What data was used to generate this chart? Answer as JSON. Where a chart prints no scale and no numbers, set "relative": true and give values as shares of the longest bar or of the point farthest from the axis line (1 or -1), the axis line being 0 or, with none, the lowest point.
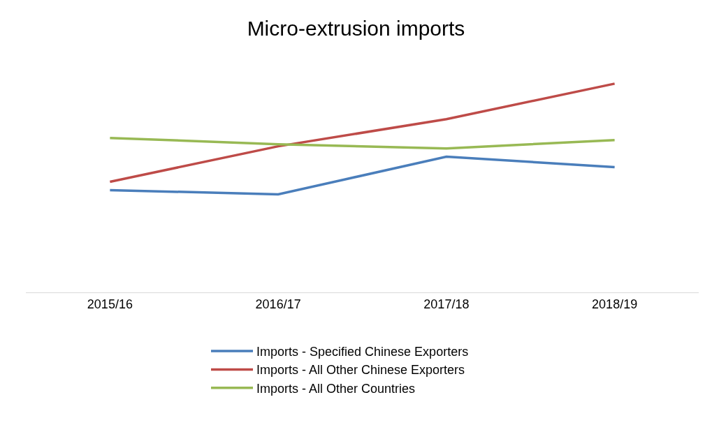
{
  "chart_data": {
    "type": "line",
    "title": "Micro-extrusion imports",
    "relative": true,
    "categories": [
      "2015/16",
      "2016/17",
      "2017/18",
      "2018/19"
    ],
    "series": [
      {
        "name": "Imports - Specified Chinese Exporters",
        "color": "#4a7ebb",
        "values": [
          0.49,
          0.47,
          0.65,
          0.6
        ]
      },
      {
        "name": "Imports - All Other Chinese Exporters",
        "color": "#be4b48",
        "values": [
          0.53,
          0.7,
          0.83,
          1
        ]
      },
      {
        "name": "Imports - All Other Countries",
        "color": "#98b954",
        "values": [
          0.74,
          0.71,
          0.69,
          0.73
        ]
      }
    ],
    "legend": "bottom",
    "marker": "none",
    "line_style": "solid"
  }
}
